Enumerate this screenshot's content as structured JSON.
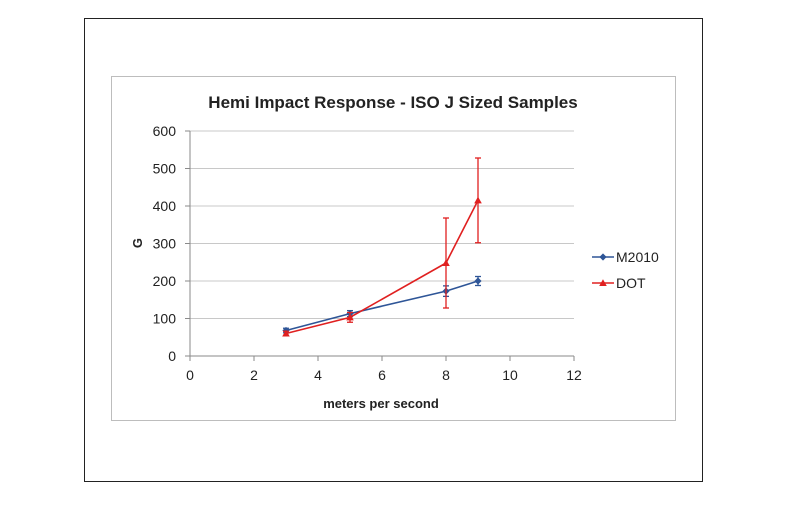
{
  "chart_data": {
    "type": "line",
    "title": "Hemi Impact Response - ISO J Sized Samples",
    "xlabel": "meters per second",
    "ylabel": "G",
    "xlim": [
      0,
      12
    ],
    "ylim": [
      0,
      600
    ],
    "xticks": [
      0,
      2,
      4,
      6,
      8,
      10,
      12
    ],
    "yticks": [
      0,
      100,
      200,
      300,
      400,
      500,
      600
    ],
    "grid": "horizontal",
    "legend_position": "right",
    "series": [
      {
        "name": "M2010",
        "color": "#2e5597",
        "marker": "diamond",
        "x": [
          3,
          5,
          8,
          9
        ],
        "y": [
          68,
          113,
          173,
          200
        ],
        "error": [
          6,
          8,
          14,
          12
        ]
      },
      {
        "name": "DOT",
        "color": "#e02020",
        "marker": "triangle",
        "x": [
          3,
          5,
          8,
          9
        ],
        "y": [
          60,
          103,
          248,
          415
        ],
        "error": [
          6,
          13,
          120,
          113
        ]
      }
    ]
  }
}
